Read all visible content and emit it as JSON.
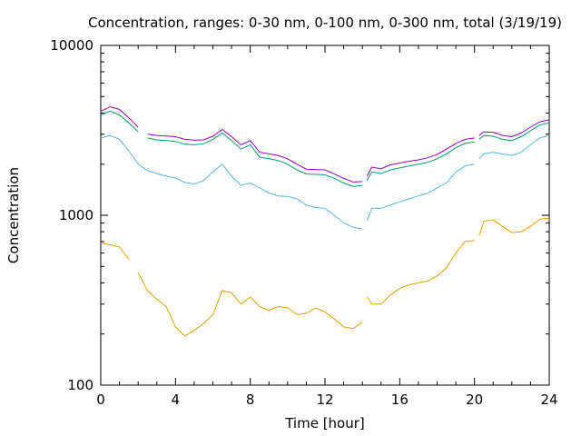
{
  "chart_data": {
    "type": "line",
    "title": "Concentration, ranges: 0-30 nm, 0-100 nm, 0-300 nm, total (3/19/19)",
    "xlabel": "Time [hour]",
    "ylabel": "Concentration",
    "xlim": [
      0,
      24
    ],
    "ylim": [
      100,
      10000
    ],
    "yscale": "log",
    "grid": false,
    "legend": "none",
    "xticks": [
      "0",
      "4",
      "8",
      "12",
      "16",
      "20",
      "24"
    ],
    "yticks": [
      "100",
      "1000",
      "10000"
    ],
    "series": [
      {
        "color": "#e69f00",
        "x": [
          0,
          0.5,
          1,
          1.5,
          2,
          2.5,
          3,
          3.5,
          4,
          4.5,
          5,
          5.5,
          6,
          6.5,
          7,
          7.5,
          8,
          8.5,
          9,
          9.5,
          10,
          10.5,
          11,
          11.5,
          12,
          12.5,
          13,
          13.5,
          14,
          14.25,
          14.5,
          15,
          15.5,
          16,
          16.5,
          17,
          17.5,
          18,
          18.5,
          19,
          19.5,
          20,
          20.25,
          20.5,
          21,
          21.5,
          22,
          22.5,
          23,
          23.5,
          24
        ],
        "y": [
          690,
          670,
          650,
          550,
          460,
          360,
          320,
          290,
          220,
          195,
          210,
          230,
          260,
          360,
          350,
          300,
          330,
          290,
          275,
          290,
          285,
          260,
          265,
          285,
          270,
          245,
          220,
          215,
          235,
          330,
          300,
          300,
          340,
          370,
          390,
          400,
          410,
          440,
          490,
          600,
          700,
          710,
          760,
          920,
          940,
          860,
          790,
          800,
          860,
          950,
          960
        ],
        "breaks": [
          2,
          14.25,
          20.25
        ]
      },
      {
        "color": "#56b4e9",
        "x": [
          0,
          0.5,
          1,
          1.5,
          2,
          2.5,
          3,
          3.5,
          4,
          4.5,
          5,
          5.5,
          6,
          6.5,
          7,
          7.5,
          8,
          8.5,
          9,
          9.5,
          10,
          10.5,
          11,
          11.5,
          12,
          12.5,
          13,
          13.5,
          14,
          14.25,
          14.5,
          15,
          15.5,
          16,
          16.5,
          17,
          17.5,
          18,
          18.5,
          19,
          19.5,
          20,
          20.25,
          20.5,
          21,
          21.5,
          22,
          22.5,
          23,
          23.5,
          24
        ],
        "y": [
          2850,
          2950,
          2800,
          2400,
          2000,
          1830,
          1760,
          1700,
          1660,
          1560,
          1530,
          1600,
          1800,
          2000,
          1700,
          1500,
          1550,
          1450,
          1350,
          1300,
          1290,
          1250,
          1150,
          1110,
          1100,
          1000,
          900,
          850,
          830,
          930,
          1100,
          1100,
          1150,
          1200,
          1250,
          1300,
          1350,
          1450,
          1550,
          1800,
          1950,
          2000,
          2150,
          2300,
          2350,
          2300,
          2250,
          2350,
          2600,
          2850,
          2950
        ],
        "breaks": [
          14.25,
          20.25
        ]
      },
      {
        "color": "#009e73",
        "x": [
          0,
          0.5,
          1,
          1.5,
          2,
          2.5,
          3,
          3.5,
          4,
          4.5,
          5,
          5.5,
          6,
          6.5,
          7,
          7.5,
          8,
          8.5,
          9,
          9.5,
          10,
          10.5,
          11,
          11.5,
          12,
          12.5,
          13,
          13.5,
          14,
          14.25,
          14.5,
          15,
          15.5,
          16,
          16.5,
          17,
          17.5,
          18,
          18.5,
          19,
          19.5,
          20,
          20.25,
          20.5,
          21,
          21.5,
          22,
          22.5,
          23,
          23.5,
          24
        ],
        "y": [
          3900,
          4100,
          3900,
          3500,
          3100,
          2850,
          2780,
          2760,
          2720,
          2620,
          2600,
          2640,
          2800,
          3050,
          2750,
          2450,
          2600,
          2200,
          2150,
          2100,
          2000,
          1850,
          1750,
          1740,
          1730,
          1650,
          1550,
          1480,
          1500,
          1600,
          1800,
          1760,
          1850,
          1900,
          1950,
          2000,
          2050,
          2150,
          2300,
          2500,
          2650,
          2700,
          2800,
          2950,
          2920,
          2800,
          2750,
          2900,
          3150,
          3400,
          3500
        ],
        "breaks": [
          2.25,
          14.25,
          20.25
        ]
      },
      {
        "color": "#9400d3",
        "x": [
          0,
          0.5,
          1,
          1.5,
          2,
          2.5,
          3,
          3.5,
          4,
          4.5,
          5,
          5.5,
          6,
          6.5,
          7,
          7.5,
          8,
          8.5,
          9,
          9.5,
          10,
          10.5,
          11,
          11.5,
          12,
          12.5,
          13,
          13.5,
          14,
          14.25,
          14.5,
          15,
          15.5,
          16,
          16.5,
          17,
          17.5,
          18,
          18.5,
          19,
          19.5,
          20,
          20.25,
          20.5,
          21,
          21.5,
          22,
          22.5,
          23,
          23.5,
          24
        ],
        "y": [
          4100,
          4350,
          4200,
          3750,
          3300,
          3000,
          2950,
          2930,
          2900,
          2800,
          2770,
          2780,
          2920,
          3200,
          2900,
          2600,
          2750,
          2350,
          2300,
          2250,
          2150,
          2000,
          1870,
          1860,
          1850,
          1750,
          1650,
          1570,
          1580,
          1700,
          1920,
          1880,
          1980,
          2030,
          2080,
          2120,
          2180,
          2280,
          2450,
          2650,
          2800,
          2850,
          2950,
          3100,
          3080,
          2950,
          2900,
          3050,
          3300,
          3550,
          3650
        ],
        "breaks": [
          2.25,
          14.25,
          20.25
        ]
      }
    ]
  }
}
